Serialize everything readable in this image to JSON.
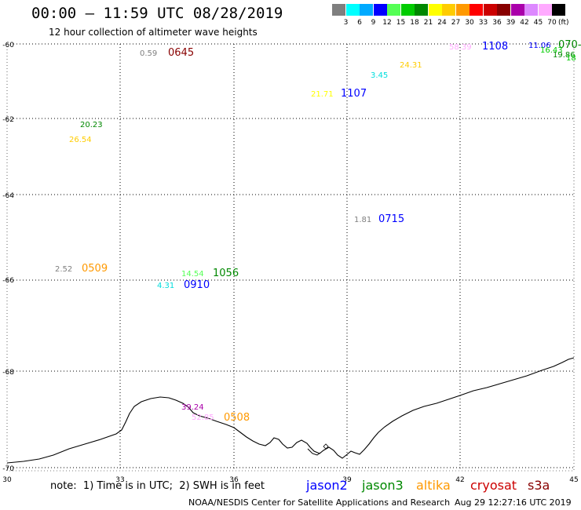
{
  "header": {
    "title": "00:00 – 11:59 UTC 08/28/2019",
    "subtitle": "12 hour collection of altimeter wave heights"
  },
  "legend_scale": {
    "colors": [
      "#7f7f7f",
      "#00ffff",
      "#00aaff",
      "#0000ff",
      "#55ff55",
      "#00cc00",
      "#008800",
      "#ffff00",
      "#ffcc00",
      "#ff9900",
      "#ff0000",
      "#cc0000",
      "#880000",
      "#aa00aa",
      "#dd88ff",
      "#ffaaff",
      "#000000"
    ],
    "ticks": [
      "3",
      "6",
      "9",
      "12",
      "15",
      "18",
      "21",
      "24",
      "27",
      "30",
      "33",
      "36",
      "39",
      "42",
      "45",
      "70"
    ],
    "unit": "(ft)"
  },
  "axes": {
    "x_ticks": [
      "30",
      "33",
      "36",
      "39",
      "42",
      "45"
    ],
    "y_ticks": [
      "-60",
      "-62",
      "-64",
      "-66",
      "-68",
      "-70"
    ]
  },
  "observations": [
    {
      "height": "0.59",
      "time": "0645",
      "height_color": "#7f7f7f",
      "time_color": "#880000"
    },
    {
      "height": "58.39",
      "time": "1108",
      "height_color": "#ffaaff",
      "time_color": "#0000ff"
    },
    {
      "height": "11.06",
      "time": "",
      "height_color": "#0000ff",
      "time_color": "#0000ff"
    },
    {
      "height": "",
      "time": "070-",
      "height_color": "#008800",
      "time_color": "#008800"
    },
    {
      "height": "16.43",
      "time": "",
      "height_color": "#00cc00",
      "time_color": "#00cc00"
    },
    {
      "height": "19.86",
      "time": "",
      "height_color": "#008800",
      "time_color": "#008800"
    },
    {
      "height": "18",
      "time": "",
      "height_color": "#00cc00",
      "time_color": "#00cc00"
    },
    {
      "height": "24.31",
      "time": "",
      "height_color": "#ffcc00",
      "time_color": "#ffcc00"
    },
    {
      "height": "3.45",
      "time": "",
      "height_color": "#00dddd",
      "time_color": "#00dddd"
    },
    {
      "height": "21.71",
      "time": "1107",
      "height_color": "#ffff00",
      "time_color": "#0000ff"
    },
    {
      "height": "20.23",
      "time": "",
      "height_color": "#008800",
      "time_color": "#008800"
    },
    {
      "height": "26.54",
      "time": "",
      "height_color": "#ffcc00",
      "time_color": "#ffcc00"
    },
    {
      "height": "1.81",
      "time": "0715",
      "height_color": "#7f7f7f",
      "time_color": "#0000ff"
    },
    {
      "height": "2.52",
      "time": "0509",
      "height_color": "#7f7f7f",
      "time_color": "#ff9900"
    },
    {
      "height": "14.54",
      "time": "1056",
      "height_color": "#55ff55",
      "time_color": "#008800"
    },
    {
      "height": "4.31",
      "time": "0910",
      "height_color": "#00dddd",
      "time_color": "#0000ff"
    },
    {
      "height": "39.24",
      "time": "",
      "height_color": "#aa00aa",
      "time_color": "#aa00aa"
    },
    {
      "height": "52.85",
      "time": "0508",
      "height_color": "#ffaaff",
      "time_color": "#ff9900"
    }
  ],
  "footer": {
    "note": "note:  1) Time is in UTC;  2) SWH is in feet",
    "missions": [
      {
        "name": "jason2",
        "color": "#0000ff"
      },
      {
        "name": "jason3",
        "color": "#008800"
      },
      {
        "name": "altika",
        "color": "#ff9900"
      },
      {
        "name": "cryosat",
        "color": "#cc0000"
      },
      {
        "name": "s3a",
        "color": "#880000"
      }
    ],
    "credit": "NOAA/NESDIS Center for Satellite Applications and Research",
    "timestamp": "Aug 29 12:27:16 UTC 2019"
  }
}
